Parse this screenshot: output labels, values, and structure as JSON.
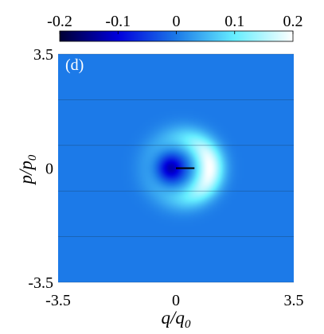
{
  "chart_data": {
    "type": "heatmap",
    "panel_label": "(d)",
    "xlabel": {
      "main": "q/q",
      "sub": "0"
    },
    "ylabel": {
      "main": "p/p",
      "sub": "0"
    },
    "xlim": [
      -3.5,
      3.5
    ],
    "ylim": [
      -3.5,
      3.5
    ],
    "xticks": [
      {
        "value": -3.5,
        "label": "-3.5"
      },
      {
        "value": 0,
        "label": "0"
      },
      {
        "value": 3.5,
        "label": "3.5"
      }
    ],
    "yticks": [
      {
        "value": 3.5,
        "label": "3.5"
      },
      {
        "value": 0,
        "label": "0"
      },
      {
        "value": -3.5,
        "label": "-3.5"
      }
    ],
    "colorbar": {
      "range": [
        -0.2,
        0.2
      ],
      "ticks": [
        {
          "value": -0.2,
          "label": "-0.2"
        },
        {
          "value": -0.1,
          "label": "-0.1"
        },
        {
          "value": 0,
          "label": "0"
        },
        {
          "value": 0.1,
          "label": "0.1"
        },
        {
          "value": 0.2,
          "label": "0.2"
        }
      ],
      "colormap": [
        {
          "v": -0.2,
          "color": "#000033"
        },
        {
          "v": -0.1,
          "color": "#0000dd"
        },
        {
          "v": 0.0,
          "color": "#1c7ae8"
        },
        {
          "v": 0.1,
          "color": "#66eeff"
        },
        {
          "v": 0.2,
          "color": "#ffffff"
        }
      ]
    },
    "field": {
      "background_value": 0.0,
      "features": [
        {
          "name": "negative-lobe",
          "center": [
            -0.15,
            0.0
          ],
          "peak": -0.13,
          "width_x": 0.38,
          "width_y": 0.4
        },
        {
          "name": "positive-crescent",
          "center": [
            0.1,
            0.0
          ],
          "radius": 0.9,
          "ring_width": 0.42,
          "peak": 0.2,
          "bias_angle_deg": 0,
          "angular_width": 1.0
        }
      ]
    },
    "segment": {
      "from": [
        0.0,
        0.0
      ],
      "to": [
        0.55,
        0.0
      ],
      "color": "#000000"
    },
    "horizontal_lines_y": [
      3.5,
      2.1,
      0.7,
      -0.7,
      -2.1,
      -3.5
    ],
    "colors": {
      "accent": "#1c7ae8",
      "line": "#000000"
    }
  }
}
